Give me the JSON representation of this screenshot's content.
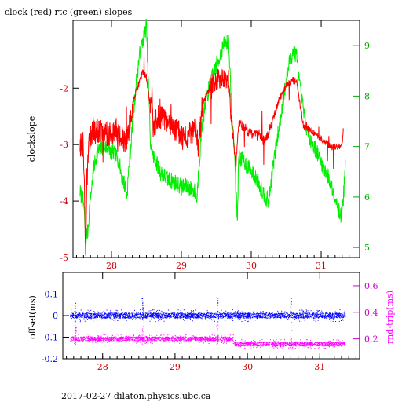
{
  "title": "clock (red) rtc (green) slopes",
  "footer": "2017-02-27  dilaton.physics.ubc.ca",
  "colors": {
    "clock": "#ff0000",
    "rtc": "#00ee00",
    "offset": "#0000ff",
    "rndtrip": "#ff00ff",
    "xtick": "#cc0000",
    "ytick_top_left": "#cc0000",
    "ytick_top_right": "#00aa00",
    "ytick_bottom_left": "#0000cc",
    "ytick_bottom_right": "#cc00cc"
  },
  "chart_data": [
    {
      "type": "line",
      "title": "clock (red) rtc (green) slopes",
      "ylabel_left": "clockslope",
      "xlim": [
        27.45,
        31.55
      ],
      "ylim_left": [
        -5,
        -0.8
      ],
      "ylim_right": [
        4.8,
        9.5
      ],
      "xticks": [
        28,
        29,
        30,
        31
      ],
      "yticks_left": [
        -5,
        -4,
        -3,
        -2
      ],
      "yticks_right": [
        5,
        6,
        7,
        8,
        9
      ],
      "grid": false,
      "series": [
        {
          "name": "clock",
          "axis": "left",
          "points": [
            [
              27.55,
              -3.0
            ],
            [
              27.6,
              -3.05
            ],
            [
              27.63,
              -4.8
            ],
            [
              27.66,
              -3.3
            ],
            [
              27.7,
              -2.8
            ],
            [
              27.8,
              -2.75
            ],
            [
              27.9,
              -2.8
            ],
            [
              28.0,
              -2.8
            ],
            [
              28.05,
              -2.7
            ],
            [
              28.1,
              -2.85
            ],
            [
              28.15,
              -2.9
            ],
            [
              28.2,
              -3.0
            ],
            [
              28.25,
              -2.8
            ],
            [
              28.3,
              -2.3
            ],
            [
              28.35,
              -2.05
            ],
            [
              28.4,
              -1.9
            ],
            [
              28.45,
              -1.7
            ],
            [
              28.5,
              -1.8
            ],
            [
              28.55,
              -2.3
            ],
            [
              28.58,
              -2.0
            ],
            [
              28.6,
              -2.8
            ],
            [
              28.65,
              -2.5
            ],
            [
              28.75,
              -2.55
            ],
            [
              28.85,
              -2.7
            ],
            [
              28.95,
              -2.75
            ],
            [
              29.0,
              -2.9
            ],
            [
              29.1,
              -2.85
            ],
            [
              29.2,
              -2.75
            ],
            [
              29.25,
              -3.05
            ],
            [
              29.3,
              -2.3
            ],
            [
              29.4,
              -2.0
            ],
            [
              29.5,
              -1.9
            ],
            [
              29.6,
              -1.75
            ],
            [
              29.68,
              -1.85
            ],
            [
              29.72,
              -2.6
            ],
            [
              29.78,
              -3.4
            ],
            [
              29.82,
              -2.6
            ],
            [
              29.9,
              -2.7
            ],
            [
              30.0,
              -2.8
            ],
            [
              30.1,
              -2.85
            ],
            [
              30.2,
              -2.95
            ],
            [
              30.3,
              -2.6
            ],
            [
              30.4,
              -2.2
            ],
            [
              30.5,
              -1.95
            ],
            [
              30.55,
              -1.9
            ],
            [
              30.6,
              -1.85
            ],
            [
              30.65,
              -1.9
            ],
            [
              30.7,
              -2.3
            ],
            [
              30.75,
              -2.7
            ],
            [
              30.85,
              -2.75
            ],
            [
              30.95,
              -2.85
            ],
            [
              31.05,
              -2.95
            ],
            [
              31.15,
              -3.05
            ],
            [
              31.25,
              -3.05
            ],
            [
              31.3,
              -3.0
            ],
            [
              31.32,
              -2.7
            ]
          ]
        },
        {
          "name": "rtc",
          "axis": "right",
          "points": [
            [
              27.55,
              6.1
            ],
            [
              27.6,
              5.9
            ],
            [
              27.63,
              5.2
            ],
            [
              27.66,
              5.3
            ],
            [
              27.7,
              6.0
            ],
            [
              27.75,
              6.6
            ],
            [
              27.8,
              6.9
            ],
            [
              27.9,
              7.0
            ],
            [
              28.0,
              6.9
            ],
            [
              28.1,
              6.75
            ],
            [
              28.15,
              6.4
            ],
            [
              28.2,
              6.2
            ],
            [
              28.22,
              6.0
            ],
            [
              28.25,
              6.6
            ],
            [
              28.3,
              7.4
            ],
            [
              28.35,
              8.2
            ],
            [
              28.4,
              8.8
            ],
            [
              28.45,
              9.1
            ],
            [
              28.5,
              9.4
            ],
            [
              28.52,
              8.6
            ],
            [
              28.56,
              7.0
            ],
            [
              28.6,
              6.8
            ],
            [
              28.7,
              6.5
            ],
            [
              28.8,
              6.35
            ],
            [
              28.9,
              6.3
            ],
            [
              29.0,
              6.2
            ],
            [
              29.1,
              6.2
            ],
            [
              29.2,
              6.1
            ],
            [
              29.22,
              5.9
            ],
            [
              29.25,
              6.6
            ],
            [
              29.3,
              7.5
            ],
            [
              29.4,
              8.2
            ],
            [
              29.5,
              8.6
            ],
            [
              29.6,
              9.0
            ],
            [
              29.68,
              9.1
            ],
            [
              29.72,
              7.5
            ],
            [
              29.75,
              7.2
            ],
            [
              29.8,
              5.5
            ],
            [
              29.82,
              6.8
            ],
            [
              29.9,
              6.7
            ],
            [
              30.0,
              6.5
            ],
            [
              30.1,
              6.3
            ],
            [
              30.2,
              6.0
            ],
            [
              30.25,
              5.9
            ],
            [
              30.3,
              6.5
            ],
            [
              30.4,
              7.4
            ],
            [
              30.5,
              8.3
            ],
            [
              30.55,
              8.7
            ],
            [
              30.6,
              8.9
            ],
            [
              30.65,
              8.8
            ],
            [
              30.7,
              8.1
            ],
            [
              30.8,
              7.3
            ],
            [
              30.9,
              7.0
            ],
            [
              31.0,
              6.7
            ],
            [
              31.1,
              6.4
            ],
            [
              31.2,
              6.0
            ],
            [
              31.28,
              5.6
            ],
            [
              31.32,
              6.0
            ],
            [
              31.35,
              6.8
            ]
          ]
        }
      ]
    },
    {
      "type": "scatter",
      "ylabel_left": "offset(ms)",
      "ylabel_right": "rnd-trip(ms)",
      "xlim": [
        27.45,
        31.55
      ],
      "ylim_left": [
        -0.2,
        0.2
      ],
      "ylim_right": [
        0.05,
        0.7
      ],
      "xticks": [
        28,
        29,
        30,
        31
      ],
      "yticks_left": [
        -0.2,
        -0.1,
        0,
        0.1
      ],
      "yticks_right": [
        0.2,
        0.4,
        0.6
      ],
      "grid": false,
      "series": [
        {
          "name": "offset",
          "axis": "left",
          "segments": [
            [
              27.55,
              0.0
            ],
            [
              29.8,
              0.0
            ],
            [
              31.35,
              0.0
            ]
          ],
          "spread": 0.02
        },
        {
          "name": "rnd-trip",
          "axis": "right",
          "segments": [
            [
              27.55,
              0.2
            ],
            [
              29.8,
              0.2
            ],
            [
              29.82,
              0.16
            ],
            [
              31.35,
              0.16
            ]
          ],
          "spread": 0.025
        }
      ]
    }
  ]
}
